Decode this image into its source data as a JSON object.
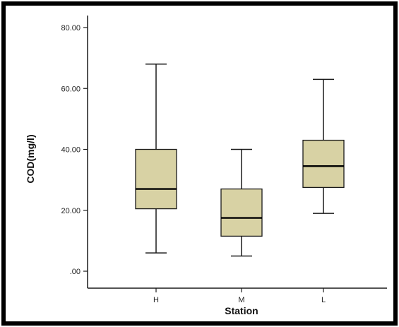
{
  "chart_data": {
    "type": "box",
    "title": "",
    "xlabel": "Station",
    "ylabel": "COD(mg/l)",
    "ylim": [
      0,
      80
    ],
    "y_ticks": [
      {
        "value": 0,
        "label": ".00"
      },
      {
        "value": 20,
        "label": "20.00"
      },
      {
        "value": 40,
        "label": "40.00"
      },
      {
        "value": 60,
        "label": "60.00"
      },
      {
        "value": 80,
        "label": "80.00"
      }
    ],
    "categories": [
      "H",
      "M",
      "L"
    ],
    "boxes": [
      {
        "category": "H",
        "min": 6,
        "q1": 20.5,
        "median": 27,
        "q3": 40,
        "max": 68
      },
      {
        "category": "M",
        "min": 5,
        "q1": 11.5,
        "median": 17.5,
        "q3": 27,
        "max": 40
      },
      {
        "category": "L",
        "min": 19,
        "q1": 27.5,
        "median": 34.5,
        "q3": 43,
        "max": 63
      }
    ],
    "grid": false,
    "legend": "none",
    "colors": {
      "box_fill": "#d8d2a4",
      "stroke": "#1a1a1a",
      "frame": "#000000"
    }
  }
}
